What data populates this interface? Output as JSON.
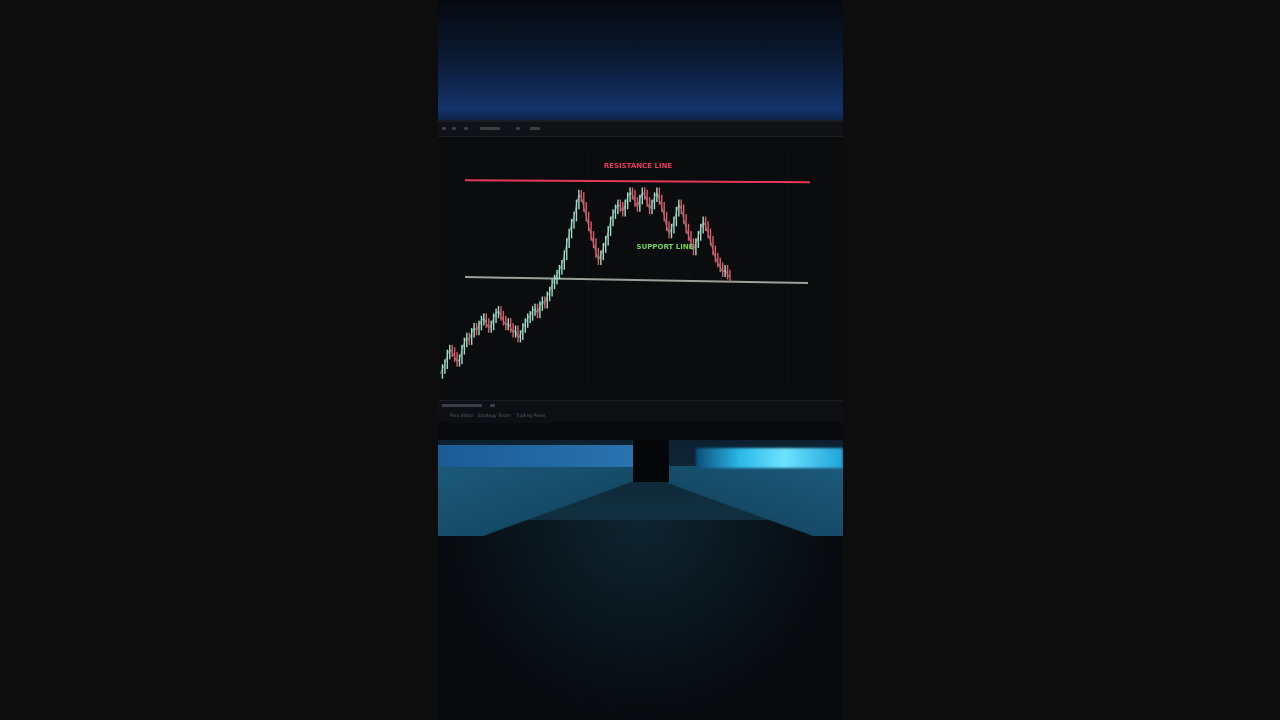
{
  "scene": {
    "description_kind": "photo of a trading chart on a monitor",
    "colors": {
      "resistance": "#e8385a",
      "support": "#6fd35a",
      "support_line": "#9aa29a",
      "candle_up": "#9fdcc6",
      "candle_down": "#e05a6a",
      "ambient_blue": "#1d6fb0",
      "led_cyan": "#4fd8ff"
    }
  },
  "chart": {
    "resistance_label": "RESISTANCE LINE",
    "support_label": "SUPPORT LINE"
  },
  "chart_data": {
    "type": "line",
    "title": "",
    "annotations": [
      "RESISTANCE LINE",
      "SUPPORT LINE"
    ],
    "x": [
      0,
      1,
      2,
      3,
      4,
      5,
      6,
      7,
      8,
      9,
      10,
      11,
      12,
      13,
      14,
      15,
      16,
      17,
      18,
      19,
      20,
      21,
      22,
      23,
      24,
      25,
      26,
      27,
      28,
      29,
      30,
      31,
      32,
      33,
      34,
      35,
      36,
      37,
      38,
      39,
      40,
      41,
      42,
      43,
      44,
      45,
      46,
      47,
      48,
      49,
      50,
      51,
      52,
      53,
      54,
      55,
      56,
      57,
      58,
      59,
      60,
      61,
      62,
      63,
      64,
      65,
      66,
      67,
      68,
      69,
      70,
      71,
      72,
      73,
      74,
      75,
      76,
      77,
      78,
      79,
      80,
      81,
      82,
      83,
      84,
      85,
      86,
      87,
      88,
      89,
      90,
      91,
      92,
      93,
      94,
      95,
      96,
      97,
      98,
      99,
      100,
      101,
      102,
      103,
      104,
      105,
      106,
      107,
      108,
      109,
      110,
      111,
      112,
      113,
      114,
      115,
      116,
      117,
      118,
      119
    ],
    "values": [
      10,
      14,
      18,
      26,
      30,
      28,
      24,
      20,
      22,
      30,
      36,
      40,
      38,
      44,
      48,
      46,
      50,
      54,
      56,
      52,
      48,
      50,
      56,
      60,
      62,
      58,
      54,
      50,
      52,
      48,
      44,
      46,
      40,
      42,
      48,
      52,
      56,
      58,
      62,
      64,
      60,
      66,
      70,
      68,
      74,
      78,
      84,
      88,
      92,
      96,
      100,
      108,
      118,
      126,
      134,
      140,
      150,
      158,
      156,
      148,
      140,
      132,
      124,
      118,
      110,
      104,
      108,
      114,
      120,
      128,
      136,
      142,
      146,
      150,
      148,
      144,
      150,
      156,
      160,
      158,
      152,
      148,
      154,
      160,
      158,
      152,
      146,
      150,
      156,
      160,
      154,
      148,
      140,
      132,
      126,
      130,
      136,
      144,
      150,
      146,
      138,
      130,
      124,
      118,
      112,
      118,
      124,
      130,
      136,
      132,
      126,
      120,
      112,
      106,
      102,
      98,
      94,
      96,
      92,
      90
    ],
    "levels": {
      "resistance": 170,
      "support": 90
    },
    "ylim": [
      0,
      190
    ]
  },
  "toolbar": {
    "bottom_items": [
      "Pine Editor",
      "Strategy Tester",
      "Trading Panel"
    ]
  }
}
